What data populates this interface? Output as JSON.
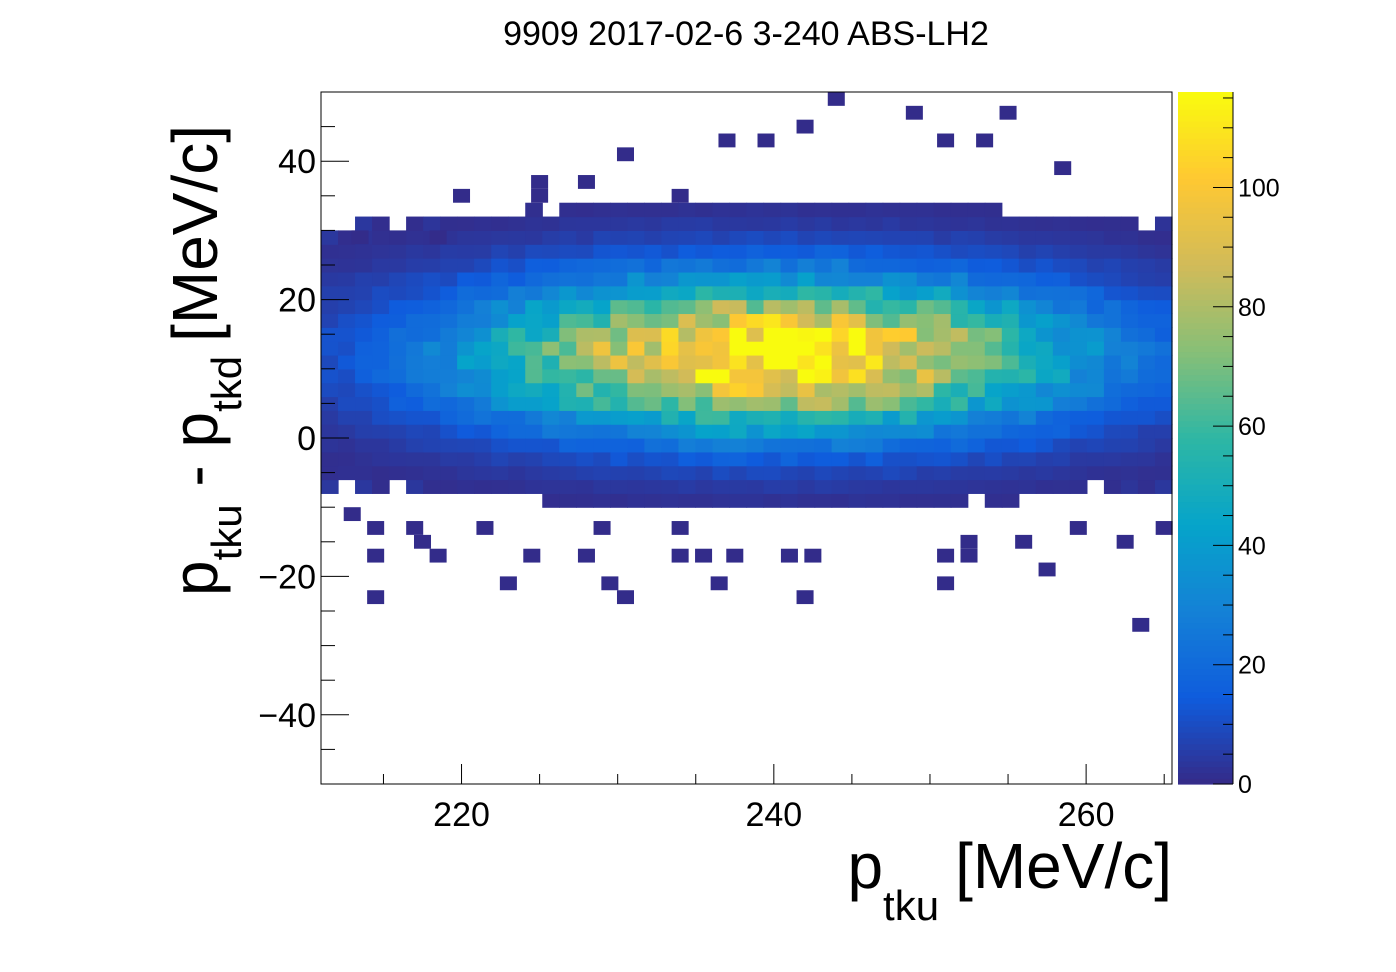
{
  "chart_data": {
    "type": "heatmap",
    "title": "9909 2017-02-6 3-240 ABS-LH2",
    "xlabel": {
      "main": "p",
      "sub": "tku",
      "unit": "[MeV/c]"
    },
    "ylabel": {
      "main1": "p",
      "sub1": "tku",
      "minus": " - ",
      "main2": "p",
      "sub2": "tkd",
      "unit": "[MeV/c]"
    },
    "xlim": [
      211,
      265.5
    ],
    "ylim": [
      -50,
      50
    ],
    "bin_width_x": 1.09,
    "bin_width_y": 2.0,
    "x_ticks": [
      220,
      240,
      260
    ],
    "x_tick_labels": [
      "220",
      "240",
      "260"
    ],
    "y_ticks": [
      -40,
      -20,
      0,
      20,
      40
    ],
    "y_tick_labels": [
      "−40",
      "−20",
      "0",
      "20",
      "40"
    ],
    "colorbar": {
      "zlim": [
        0,
        116
      ],
      "ticks": [
        0,
        20,
        40,
        60,
        80,
        100
      ],
      "tick_labels": [
        "0",
        "20",
        "40",
        "60",
        "80",
        "100"
      ],
      "palette": [
        "#352a87",
        "#0f5cdd",
        "#1481d6",
        "#06a4ca",
        "#2eb7a4",
        "#87bf77",
        "#d1bb59",
        "#fec832",
        "#f9fb0e"
      ]
    },
    "distribution": {
      "center_x": 240.0,
      "center_y": 12.0,
      "sigma_x": 8.5,
      "sigma_y": 7.5,
      "peak_count": 116,
      "note_visible": false
    },
    "outlier_points": [
      [
        244.0,
        49.0
      ],
      [
        242.0,
        45.0
      ],
      [
        249.0,
        47.0
      ],
      [
        255.0,
        47.0
      ],
      [
        237.0,
        43.0
      ],
      [
        239.5,
        43.0
      ],
      [
        251.0,
        43.0
      ],
      [
        253.5,
        43.0
      ],
      [
        230.5,
        41.0
      ],
      [
        258.5,
        39.0
      ],
      [
        225.0,
        37.0
      ],
      [
        228.0,
        37.0
      ],
      [
        220.0,
        35.0
      ],
      [
        225.0,
        35.0
      ],
      [
        234.0,
        35.0
      ],
      [
        213.5,
        29.0
      ],
      [
        218.5,
        29.0
      ],
      [
        213.0,
        -11.0
      ],
      [
        214.5,
        -13.0
      ],
      [
        217.0,
        -13.0
      ],
      [
        221.5,
        -13.0
      ],
      [
        229.0,
        -13.0
      ],
      [
        234.0,
        -13.0
      ],
      [
        259.5,
        -13.0
      ],
      [
        265.0,
        -13.0
      ],
      [
        217.5,
        -15.0
      ],
      [
        252.5,
        -15.0
      ],
      [
        256.0,
        -15.0
      ],
      [
        262.5,
        -15.0
      ],
      [
        214.5,
        -17.0
      ],
      [
        218.5,
        -17.0
      ],
      [
        224.5,
        -17.0
      ],
      [
        228.0,
        -17.0
      ],
      [
        234.0,
        -17.0
      ],
      [
        235.5,
        -17.0
      ],
      [
        237.5,
        -17.0
      ],
      [
        241.0,
        -17.0
      ],
      [
        242.5,
        -17.0
      ],
      [
        251.0,
        -17.0
      ],
      [
        252.5,
        -17.0
      ],
      [
        257.5,
        -19.0
      ],
      [
        223.0,
        -21.0
      ],
      [
        229.5,
        -21.0
      ],
      [
        236.5,
        -21.0
      ],
      [
        251.0,
        -21.0
      ],
      [
        214.5,
        -23.0
      ],
      [
        230.5,
        -23.0
      ],
      [
        242.0,
        -23.0
      ],
      [
        263.5,
        -27.0
      ]
    ]
  }
}
